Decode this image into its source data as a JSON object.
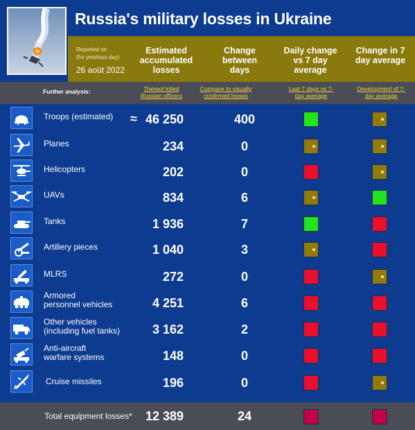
{
  "header": {
    "title": "Russia's military losses in Ukraine",
    "reported_on": "Reported on",
    "reported_note": "(for previous day)",
    "report_date": "26 août 2022",
    "col_estimated": "Estimated accumulated losses",
    "col_change": "Change between days",
    "col_daily": "Daily change vs 7 day average",
    "col_7day": "Change in 7 day average"
  },
  "analysis": {
    "label": "Further analysis:",
    "link_officers": "Thereof killed Russian officers",
    "link_compare": "Compare to visually confirmed losses",
    "link_last7": "Last 7 days vs 7-day average",
    "link_develop": "Development of 7-day average"
  },
  "colors": {
    "green": "#22e51e",
    "red": "#e8102c",
    "olive": "#8f7c0c",
    "dark_red": "#c3004a"
  },
  "rows": [
    {
      "icon": "helmet-icon",
      "label": "Troops (estimated)",
      "approx": "≈",
      "value": "46 250",
      "change": "400",
      "daily": "green",
      "week": "olive"
    },
    {
      "icon": "plane-icon",
      "label": "Planes",
      "value": "234",
      "change": "0",
      "daily": "olive",
      "week": "olive"
    },
    {
      "icon": "helicopter-icon",
      "label": "Helicopters",
      "value": "202",
      "change": "0",
      "daily": "red",
      "week": "olive"
    },
    {
      "icon": "drone-icon",
      "label": "UAVs",
      "value": "834",
      "change": "6",
      "daily": "olive",
      "week": "green"
    },
    {
      "icon": "tank-icon",
      "label": "Tanks",
      "value": "1 936",
      "change": "7",
      "daily": "green",
      "week": "red"
    },
    {
      "icon": "artillery-icon",
      "label": "Artillery pieces",
      "value": "1 040",
      "change": "3",
      "daily": "olive",
      "week": "red"
    },
    {
      "icon": "rocket-launcher-icon",
      "label": "MLRS",
      "value": "272",
      "change": "0",
      "daily": "red",
      "week": "olive"
    },
    {
      "icon": "apc-icon",
      "label": "Armored personnel vehicles",
      "label1": "Armored",
      "label2": "personnel vehicles",
      "value": "4 251",
      "change": "6",
      "daily": "red",
      "week": "red"
    },
    {
      "icon": "truck-icon",
      "label": "Other vehicles (including fuel tanks)",
      "label1": "Other vehicles",
      "label2": "(including fuel tanks)",
      "value": "3 162",
      "change": "2",
      "daily": "red",
      "week": "red"
    },
    {
      "icon": "anti-aircraft-icon",
      "label": "Anti-aircraft warfare systems",
      "label1": "Anti-aircraft",
      "label2": "warfare systems",
      "value": "148",
      "change": "0",
      "daily": "red",
      "week": "red"
    },
    {
      "icon": "missile-icon",
      "label": "Cruise missiles",
      "value": "196",
      "change": "0",
      "daily": "red",
      "week": "olive"
    }
  ],
  "footer": {
    "label": "Total equipment losses*",
    "value": "12 389",
    "change": "24",
    "daily": "dark_red",
    "week": "dark_red"
  }
}
